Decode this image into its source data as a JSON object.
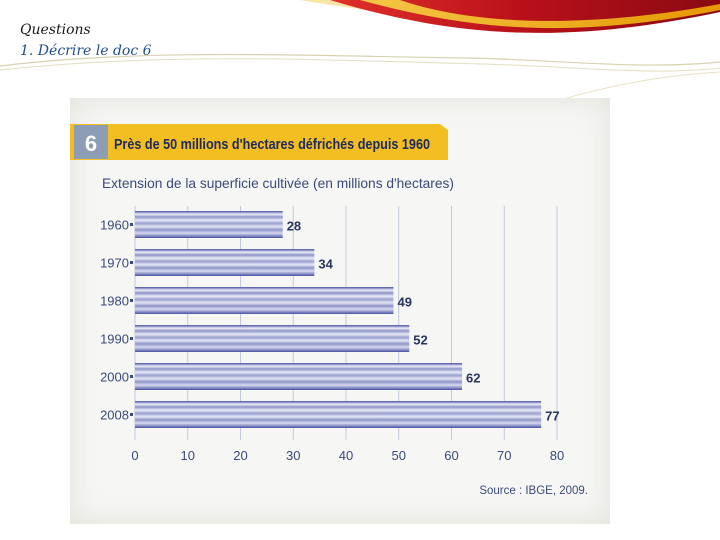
{
  "slide": {
    "title": "Questions",
    "question": "1. Décrire le doc 6"
  },
  "colors": {
    "title_band": "#f2be22",
    "doc_number_box": "#8c9db4",
    "bar_light": "#e8eaf6",
    "bar_dark": "#4d56a6",
    "header_red": "#c0141c",
    "header_yellow": "#f2c200"
  },
  "chart_data": {
    "type": "bar",
    "orientation": "horizontal",
    "doc_number": "6",
    "title": "Près de 50 millions d'hectares défrichés depuis 1960",
    "subtitle": "Extension de la superficie cultivée (en millions d'hectares)",
    "categories": [
      "1960",
      "1970",
      "1980",
      "1990",
      "2000",
      "2008"
    ],
    "values": [
      28,
      34,
      49,
      52,
      62,
      77
    ],
    "xlim": [
      0,
      80
    ],
    "xticks": [
      0,
      10,
      20,
      30,
      40,
      50,
      60,
      70,
      80
    ],
    "grid": true,
    "source": "Source : IBGE, 2009."
  }
}
